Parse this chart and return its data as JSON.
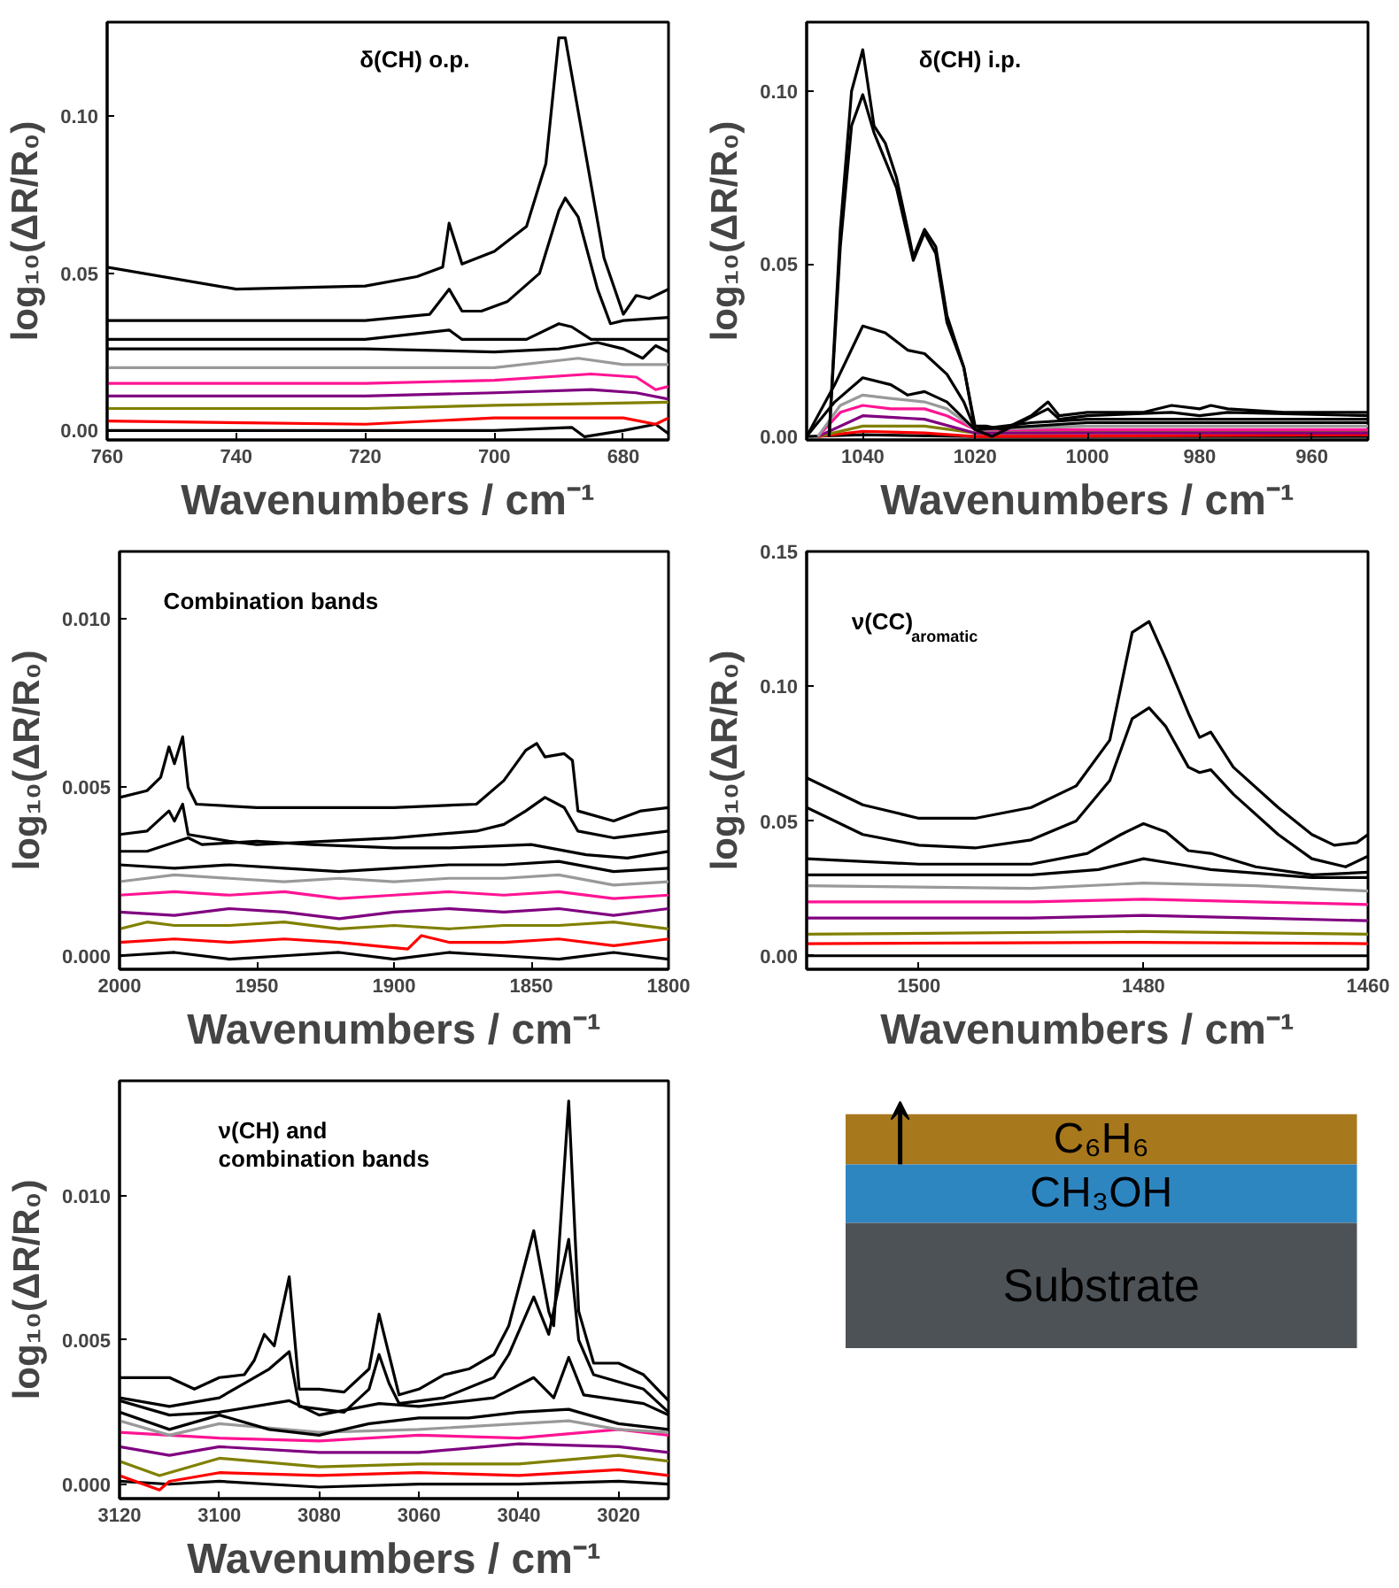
{
  "chart_data": [
    {
      "type": "line",
      "title": "δ(CH) o.p.",
      "xlabel": "Wavenumbers / cm⁻¹",
      "ylabel": "log₁₀(ΔR/R₀)",
      "xlim": [
        760,
        673
      ],
      "ylim": [
        -0.003,
        0.13
      ],
      "xticks": [
        760,
        740,
        720,
        700,
        680
      ],
      "yticks": [
        {
          "value": 0,
          "label": "0.00"
        },
        {
          "value": 0.05,
          "label": "0.05"
        },
        {
          "value": 0.1,
          "label": "0.10"
        }
      ],
      "grid": false,
      "series": [
        {
          "color": "#000000",
          "x": [
            760,
            720,
            700,
            688,
            686,
            680,
            675,
            673
          ],
          "values": [
            0.0,
            0.0,
            0.0,
            0.001,
            -0.002,
            0.0,
            0.002,
            -0.001
          ]
        },
        {
          "color": "#ff0000",
          "x": [
            760,
            720,
            700,
            680,
            675,
            673
          ],
          "values": [
            0.003,
            0.002,
            0.004,
            0.004,
            0.002,
            0.004
          ]
        },
        {
          "color": "#808000",
          "x": [
            760,
            720,
            700,
            673
          ],
          "values": [
            0.007,
            0.007,
            0.008,
            0.009
          ]
        },
        {
          "color": "#800080",
          "x": [
            760,
            720,
            700,
            685,
            678,
            673
          ],
          "values": [
            0.011,
            0.011,
            0.012,
            0.013,
            0.012,
            0.01
          ]
        },
        {
          "color": "#ff1493",
          "x": [
            760,
            720,
            700,
            685,
            678,
            675,
            673
          ],
          "values": [
            0.015,
            0.015,
            0.016,
            0.018,
            0.017,
            0.013,
            0.014
          ]
        },
        {
          "color": "#999999",
          "x": [
            760,
            720,
            700,
            687,
            680,
            673
          ],
          "values": [
            0.02,
            0.02,
            0.02,
            0.023,
            0.021,
            0.021
          ]
        },
        {
          "color": "#000000",
          "x": [
            760,
            720,
            700,
            690,
            684,
            680,
            677,
            675,
            673
          ],
          "values": [
            0.026,
            0.026,
            0.025,
            0.026,
            0.028,
            0.026,
            0.023,
            0.027,
            0.025
          ]
        },
        {
          "color": "#000000",
          "x": [
            760,
            720,
            707,
            705,
            695,
            690,
            688,
            685,
            673
          ],
          "values": [
            0.029,
            0.029,
            0.032,
            0.029,
            0.029,
            0.034,
            0.033,
            0.029,
            0.029
          ]
        },
        {
          "color": "#000000",
          "x": [
            760,
            720,
            710,
            707,
            705,
            702,
            698,
            693,
            690,
            689,
            687,
            684,
            682,
            680,
            673
          ],
          "values": [
            0.035,
            0.035,
            0.037,
            0.045,
            0.038,
            0.038,
            0.041,
            0.05,
            0.07,
            0.074,
            0.068,
            0.045,
            0.034,
            0.035,
            0.036
          ]
        },
        {
          "color": "#000000",
          "x": [
            760,
            740,
            720,
            712,
            708,
            707,
            705,
            700,
            695,
            692,
            690,
            689,
            686,
            683,
            680,
            678,
            676,
            673
          ],
          "values": [
            0.052,
            0.045,
            0.046,
            0.049,
            0.052,
            0.066,
            0.053,
            0.057,
            0.065,
            0.085,
            0.125,
            0.125,
            0.09,
            0.055,
            0.037,
            0.043,
            0.042,
            0.045
          ]
        }
      ]
    },
    {
      "type": "line",
      "title": "δ(CH) i.p.",
      "xlabel": "Wavenumbers / cm⁻¹",
      "ylabel": "log₁₀(ΔR/R₀)",
      "xlim": [
        1050,
        950
      ],
      "ylim": [
        -0.001,
        0.12
      ],
      "xticks": [
        1040,
        1020,
        1000,
        980,
        960
      ],
      "yticks": [
        {
          "value": 0,
          "label": "0.00"
        },
        {
          "value": 0.05,
          "label": "0.05"
        },
        {
          "value": 0.1,
          "label": "0.10"
        }
      ],
      "grid": false,
      "series": [
        {
          "color": "#000000",
          "x": [
            1050,
            1040,
            1020,
            950
          ],
          "values": [
            0.0,
            0.0005,
            0.0,
            0.0
          ]
        },
        {
          "color": "#ff0000",
          "x": [
            1048,
            1040,
            1029,
            1020,
            950
          ],
          "values": [
            0.0,
            0.0015,
            0.001,
            0.0,
            0.0005
          ]
        },
        {
          "color": "#808000",
          "x": [
            1048,
            1040,
            1029,
            1020,
            950
          ],
          "values": [
            0.0,
            0.003,
            0.003,
            0.001,
            0.0015
          ]
        },
        {
          "color": "#800080",
          "x": [
            1048,
            1040,
            1029,
            1020,
            950
          ],
          "values": [
            0.0,
            0.006,
            0.005,
            0.001,
            0.001
          ]
        },
        {
          "color": "#ff1493",
          "x": [
            1048,
            1044,
            1040,
            1035,
            1029,
            1025,
            1020,
            1000,
            950
          ],
          "values": [
            0.0,
            0.007,
            0.009,
            0.008,
            0.008,
            0.006,
            0.002,
            0.002,
            0.002
          ]
        },
        {
          "color": "#999999",
          "x": [
            1048,
            1044,
            1040,
            1035,
            1029,
            1025,
            1020,
            1000,
            950
          ],
          "values": [
            0.0,
            0.009,
            0.012,
            0.011,
            0.01,
            0.008,
            0.002,
            0.003,
            0.003
          ]
        },
        {
          "color": "#000000",
          "x": [
            1050,
            1045,
            1040,
            1035,
            1032,
            1029,
            1025,
            1020,
            1000,
            950
          ],
          "values": [
            0.0,
            0.01,
            0.017,
            0.015,
            0.012,
            0.013,
            0.01,
            0.002,
            0.004,
            0.004
          ]
        },
        {
          "color": "#000000",
          "x": [
            1050,
            1045,
            1040,
            1036,
            1032,
            1029,
            1025,
            1022,
            1020,
            1010,
            1000,
            950
          ],
          "values": [
            0.0,
            0.015,
            0.032,
            0.03,
            0.025,
            0.024,
            0.018,
            0.01,
            0.002,
            0.004,
            0.005,
            0.005
          ]
        },
        {
          "color": "#000000",
          "x": [
            1046,
            1044,
            1042,
            1040,
            1038,
            1036,
            1034,
            1031,
            1029,
            1027,
            1025,
            1022,
            1020,
            1017,
            1012,
            1007,
            1005,
            1000,
            985,
            980,
            975,
            950
          ],
          "values": [
            0.0,
            0.055,
            0.09,
            0.099,
            0.088,
            0.08,
            0.072,
            0.051,
            0.059,
            0.053,
            0.033,
            0.02,
            0.002,
            0.0,
            0.004,
            0.008,
            0.005,
            0.006,
            0.007,
            0.006,
            0.007,
            0.006
          ]
        },
        {
          "color": "#000000",
          "x": [
            1046,
            1044,
            1042,
            1040,
            1038,
            1036,
            1034,
            1032,
            1031,
            1029,
            1027,
            1025,
            1022,
            1020,
            1018,
            1015,
            1010,
            1007,
            1005,
            1000,
            990,
            985,
            980,
            978,
            975,
            965,
            950
          ],
          "values": [
            0.0,
            0.06,
            0.1,
            0.112,
            0.09,
            0.085,
            0.075,
            0.06,
            0.052,
            0.06,
            0.055,
            0.035,
            0.02,
            0.003,
            0.003,
            0.002,
            0.006,
            0.01,
            0.006,
            0.007,
            0.007,
            0.009,
            0.008,
            0.009,
            0.008,
            0.007,
            0.007
          ]
        }
      ]
    },
    {
      "type": "line",
      "title": "Combination bands",
      "xlabel": "Wavenumbers / cm⁻¹",
      "ylabel": "log₁₀(ΔR/R₀)",
      "xlim": [
        2000,
        1800
      ],
      "ylim": [
        -0.0004,
        0.012
      ],
      "xticks": [
        2000,
        1950,
        1900,
        1850,
        1800
      ],
      "yticks": [
        {
          "value": 0,
          "label": "0.000"
        },
        {
          "value": 0.005,
          "label": "0.005"
        },
        {
          "value": 0.01,
          "label": "0.010"
        }
      ],
      "grid": false,
      "series": [
        {
          "color": "#000000",
          "x": [
            2000,
            1980,
            1960,
            1940,
            1920,
            1900,
            1880,
            1860,
            1840,
            1820,
            1800
          ],
          "values": [
            0.0,
            0.0001,
            -0.0001,
            0.0,
            0.0001,
            -0.0001,
            0.0001,
            0.0,
            -0.0001,
            0.0001,
            -0.0001
          ]
        },
        {
          "color": "#ff0000",
          "x": [
            2000,
            1980,
            1960,
            1940,
            1920,
            1895,
            1890,
            1880,
            1860,
            1840,
            1820,
            1800
          ],
          "values": [
            0.0004,
            0.0005,
            0.0004,
            0.0005,
            0.0004,
            0.0002,
            0.0006,
            0.0004,
            0.0004,
            0.0005,
            0.0003,
            0.0005
          ]
        },
        {
          "color": "#808000",
          "x": [
            2000,
            1990,
            1980,
            1960,
            1940,
            1920,
            1900,
            1880,
            1860,
            1840,
            1820,
            1800
          ],
          "values": [
            0.0008,
            0.001,
            0.0009,
            0.0009,
            0.001,
            0.0008,
            0.0009,
            0.0008,
            0.0009,
            0.0009,
            0.001,
            0.0008
          ]
        },
        {
          "color": "#800080",
          "x": [
            2000,
            1980,
            1960,
            1940,
            1920,
            1900,
            1880,
            1860,
            1840,
            1820,
            1800
          ],
          "values": [
            0.0013,
            0.0012,
            0.0014,
            0.0013,
            0.0011,
            0.0013,
            0.0014,
            0.0013,
            0.0014,
            0.0012,
            0.0014
          ]
        },
        {
          "color": "#ff1493",
          "x": [
            2000,
            1980,
            1960,
            1940,
            1920,
            1900,
            1880,
            1860,
            1840,
            1820,
            1800
          ],
          "values": [
            0.0018,
            0.0019,
            0.0018,
            0.0019,
            0.0017,
            0.0018,
            0.0019,
            0.0018,
            0.0019,
            0.0017,
            0.0018
          ]
        },
        {
          "color": "#999999",
          "x": [
            2000,
            1980,
            1960,
            1940,
            1920,
            1900,
            1880,
            1860,
            1840,
            1820,
            1800
          ],
          "values": [
            0.0022,
            0.0024,
            0.0023,
            0.0022,
            0.0023,
            0.0022,
            0.0023,
            0.0023,
            0.0024,
            0.0021,
            0.0022
          ]
        },
        {
          "color": "#000000",
          "x": [
            2000,
            1980,
            1960,
            1940,
            1920,
            1900,
            1880,
            1860,
            1840,
            1820,
            1800
          ],
          "values": [
            0.0027,
            0.0026,
            0.0027,
            0.0026,
            0.0025,
            0.0026,
            0.0027,
            0.0027,
            0.0028,
            0.0025,
            0.0026
          ]
        },
        {
          "color": "#000000",
          "x": [
            2000,
            1990,
            1975,
            1970,
            1950,
            1930,
            1900,
            1880,
            1850,
            1830,
            1815,
            1800
          ],
          "values": [
            0.0031,
            0.0031,
            0.0035,
            0.0033,
            0.0034,
            0.0033,
            0.0032,
            0.0032,
            0.0033,
            0.003,
            0.0029,
            0.0031
          ]
        },
        {
          "color": "#000000",
          "x": [
            2000,
            1990,
            1982,
            1980,
            1977,
            1975,
            1960,
            1950,
            1900,
            1870,
            1860,
            1852,
            1845,
            1838,
            1833,
            1820,
            1800
          ],
          "values": [
            0.0036,
            0.0037,
            0.0043,
            0.004,
            0.0045,
            0.0036,
            0.0034,
            0.0033,
            0.0035,
            0.0037,
            0.0039,
            0.0043,
            0.0047,
            0.0044,
            0.0037,
            0.0035,
            0.0037
          ]
        },
        {
          "color": "#000000",
          "x": [
            2000,
            1990,
            1985,
            1982,
            1980,
            1977,
            1975,
            1972,
            1950,
            1900,
            1870,
            1860,
            1852,
            1848,
            1845,
            1838,
            1835,
            1833,
            1820,
            1810,
            1800
          ],
          "values": [
            0.0047,
            0.0049,
            0.0053,
            0.0062,
            0.0057,
            0.0065,
            0.005,
            0.0045,
            0.0044,
            0.0044,
            0.0045,
            0.0052,
            0.0061,
            0.0063,
            0.0059,
            0.006,
            0.0058,
            0.0043,
            0.004,
            0.0043,
            0.0044
          ]
        }
      ]
    },
    {
      "type": "line",
      "title": "ν(CC)$_{aromatic}$",
      "xlabel": "Wavenumbers / cm⁻¹",
      "ylabel": "log₁₀(ΔR/R₀)",
      "xlim": [
        1510,
        1460
      ],
      "ylim": [
        -0.005,
        0.15
      ],
      "xticks": [
        1500,
        1480,
        1460
      ],
      "yticks": [
        {
          "value": 0,
          "label": "0.00"
        },
        {
          "value": 0.05,
          "label": "0.05"
        },
        {
          "value": 0.1,
          "label": "0.10"
        },
        {
          "value": 0.15,
          "label": "0.15"
        }
      ],
      "grid": false,
      "series": [
        {
          "color": "#000000",
          "x": [
            1510,
            1460
          ],
          "values": [
            0.0,
            0.0
          ]
        },
        {
          "color": "#ff0000",
          "x": [
            1510,
            1480,
            1460
          ],
          "values": [
            0.0045,
            0.005,
            0.0045
          ]
        },
        {
          "color": "#808000",
          "x": [
            1510,
            1480,
            1460
          ],
          "values": [
            0.008,
            0.009,
            0.008
          ]
        },
        {
          "color": "#800080",
          "x": [
            1510,
            1490,
            1480,
            1470,
            1460
          ],
          "values": [
            0.014,
            0.014,
            0.015,
            0.014,
            0.013
          ]
        },
        {
          "color": "#ff1493",
          "x": [
            1510,
            1490,
            1480,
            1470,
            1460
          ],
          "values": [
            0.02,
            0.02,
            0.021,
            0.02,
            0.019
          ]
        },
        {
          "color": "#999999",
          "x": [
            1510,
            1490,
            1480,
            1470,
            1460
          ],
          "values": [
            0.026,
            0.025,
            0.027,
            0.026,
            0.024
          ]
        },
        {
          "color": "#000000",
          "x": [
            1510,
            1500,
            1490,
            1484,
            1480,
            1477,
            1474,
            1465,
            1460
          ],
          "values": [
            0.03,
            0.03,
            0.03,
            0.032,
            0.036,
            0.034,
            0.032,
            0.029,
            0.029
          ]
        },
        {
          "color": "#000000",
          "x": [
            1510,
            1500,
            1490,
            1485,
            1482,
            1480,
            1478,
            1476,
            1474,
            1470,
            1465,
            1460
          ],
          "values": [
            0.036,
            0.034,
            0.034,
            0.038,
            0.045,
            0.049,
            0.046,
            0.039,
            0.038,
            0.033,
            0.03,
            0.031
          ]
        },
        {
          "color": "#000000",
          "x": [
            1510,
            1505,
            1500,
            1495,
            1490,
            1486,
            1483,
            1481,
            1479.5,
            1478,
            1476,
            1475,
            1474,
            1472,
            1468,
            1465,
            1462,
            1460
          ],
          "values": [
            0.055,
            0.045,
            0.041,
            0.04,
            0.043,
            0.05,
            0.065,
            0.088,
            0.092,
            0.085,
            0.07,
            0.068,
            0.069,
            0.06,
            0.045,
            0.036,
            0.033,
            0.037
          ]
        },
        {
          "color": "#000000",
          "x": [
            1510,
            1505,
            1500,
            1495,
            1490,
            1486,
            1483,
            1481,
            1479.5,
            1478,
            1476,
            1475,
            1474,
            1472,
            1468,
            1465,
            1463,
            1461,
            1460
          ],
          "values": [
            0.066,
            0.056,
            0.051,
            0.051,
            0.055,
            0.063,
            0.08,
            0.12,
            0.124,
            0.11,
            0.09,
            0.081,
            0.083,
            0.07,
            0.055,
            0.045,
            0.041,
            0.042,
            0.045
          ]
        }
      ]
    },
    {
      "type": "line",
      "title": "ν(CH) and\ncombination bands",
      "xlabel": "Wavenumbers / cm⁻¹",
      "ylabel": "log₁₀(ΔR/R₀)",
      "xlim": [
        3120,
        3010
      ],
      "ylim": [
        -0.0005,
        0.014
      ],
      "xticks": [
        3120,
        3100,
        3080,
        3060,
        3040,
        3020
      ],
      "yticks": [
        {
          "value": 0,
          "label": "0.000"
        },
        {
          "value": 0.005,
          "label": "0.005"
        },
        {
          "value": 0.01,
          "label": "0.010"
        }
      ],
      "grid": false,
      "series": [
        {
          "color": "#000000",
          "x": [
            3120,
            3110,
            3100,
            3080,
            3060,
            3040,
            3020,
            3010
          ],
          "values": [
            0.0001,
            0.0,
            0.0001,
            -0.0001,
            0.0,
            0.0,
            0.0001,
            0.0
          ]
        },
        {
          "color": "#ff0000",
          "x": [
            3120,
            3112,
            3110,
            3100,
            3080,
            3060,
            3040,
            3020,
            3010
          ],
          "values": [
            0.0003,
            -0.0002,
            0.0001,
            0.0004,
            0.0003,
            0.0004,
            0.0003,
            0.0005,
            0.0003
          ]
        },
        {
          "color": "#808000",
          "x": [
            3120,
            3112,
            3100,
            3080,
            3060,
            3040,
            3020,
            3010
          ],
          "values": [
            0.0008,
            0.0003,
            0.0009,
            0.0006,
            0.0007,
            0.0007,
            0.001,
            0.0008
          ]
        },
        {
          "color": "#800080",
          "x": [
            3120,
            3110,
            3100,
            3080,
            3060,
            3040,
            3020,
            3010
          ],
          "values": [
            0.0013,
            0.001,
            0.0013,
            0.0011,
            0.0011,
            0.0014,
            0.0013,
            0.0011
          ]
        },
        {
          "color": "#ff1493",
          "x": [
            3120,
            3110,
            3100,
            3080,
            3060,
            3040,
            3020,
            3010
          ],
          "values": [
            0.0018,
            0.0017,
            0.0016,
            0.0015,
            0.0017,
            0.0016,
            0.0019,
            0.0017
          ]
        },
        {
          "color": "#999999",
          "x": [
            3120,
            3110,
            3100,
            3080,
            3060,
            3040,
            3030,
            3020,
            3010
          ],
          "values": [
            0.0022,
            0.0017,
            0.0021,
            0.0018,
            0.0019,
            0.0021,
            0.0022,
            0.0019,
            0.0018
          ]
        },
        {
          "color": "#000000",
          "x": [
            3120,
            3110,
            3100,
            3090,
            3080,
            3070,
            3060,
            3050,
            3040,
            3030,
            3020,
            3010
          ],
          "values": [
            0.0025,
            0.0019,
            0.0024,
            0.0019,
            0.0017,
            0.0021,
            0.0023,
            0.0023,
            0.0025,
            0.0026,
            0.0021,
            0.0019
          ]
        },
        {
          "color": "#000000",
          "x": [
            3120,
            3110,
            3100,
            3086,
            3080,
            3068,
            3060,
            3045,
            3037,
            3033,
            3030,
            3027,
            3015,
            3010
          ],
          "values": [
            0.0029,
            0.0024,
            0.0025,
            0.0029,
            0.0024,
            0.0028,
            0.0027,
            0.003,
            0.0037,
            0.003,
            0.0044,
            0.0031,
            0.0028,
            0.0024
          ]
        },
        {
          "color": "#000000",
          "x": [
            3120,
            3110,
            3100,
            3095,
            3090,
            3086,
            3084,
            3075,
            3070,
            3068,
            3066,
            3064,
            3055,
            3045,
            3042,
            3037,
            3034,
            3030,
            3028,
            3025,
            3015,
            3010
          ],
          "values": [
            0.003,
            0.0027,
            0.003,
            0.0035,
            0.004,
            0.0046,
            0.0027,
            0.0025,
            0.0033,
            0.0045,
            0.0035,
            0.0028,
            0.003,
            0.0037,
            0.0045,
            0.0065,
            0.0052,
            0.0085,
            0.005,
            0.0038,
            0.0033,
            0.0025
          ]
        },
        {
          "color": "#000000",
          "x": [
            3120,
            3110,
            3105,
            3100,
            3095,
            3093,
            3091,
            3089,
            3086,
            3084,
            3080,
            3075,
            3070,
            3068,
            3066,
            3064,
            3060,
            3055,
            3050,
            3045,
            3042,
            3037,
            3034,
            3033,
            3030,
            3028,
            3025,
            3020,
            3015,
            3010
          ],
          "values": [
            0.0037,
            0.0037,
            0.0033,
            0.0037,
            0.0038,
            0.0043,
            0.0052,
            0.0048,
            0.0072,
            0.0033,
            0.0033,
            0.0032,
            0.004,
            0.0059,
            0.0045,
            0.0031,
            0.0033,
            0.0038,
            0.004,
            0.0045,
            0.0055,
            0.0088,
            0.006,
            0.0055,
            0.0133,
            0.006,
            0.0042,
            0.0042,
            0.0038,
            0.0029
          ]
        }
      ]
    },
    {
      "type": "other",
      "annotations": [
        "C₆H₆",
        "CH₃OH",
        "Substrate"
      ],
      "colors": [
        "#a8781c",
        "#2e86c1",
        "#4d5257"
      ]
    }
  ]
}
